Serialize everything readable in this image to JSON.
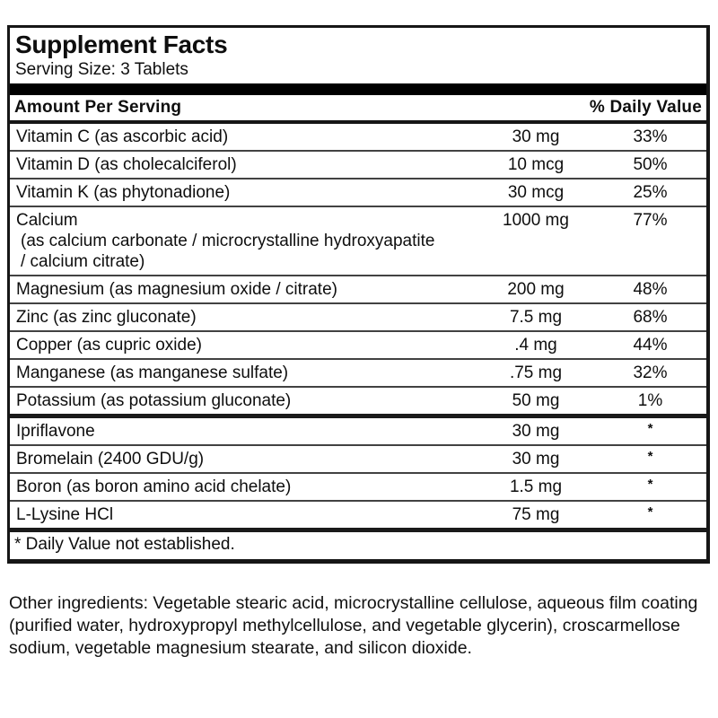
{
  "label": {
    "title": "Supplement Facts",
    "serving_size": "Serving Size: 3 Tablets",
    "columns": {
      "amount_header": "Amount Per Serving",
      "dv_header": "% Daily Value"
    },
    "rows": [
      {
        "name": "Vitamin C (as ascorbic acid)",
        "amount": "30 mg",
        "dv": "33%"
      },
      {
        "name": "Vitamin D (as cholecalciferol)",
        "amount": "10 mcg",
        "dv": "50%"
      },
      {
        "name": "Vitamin K (as phytonadione)",
        "amount": "30 mcg",
        "dv": "25%"
      },
      {
        "name": "Calcium",
        "sub": [
          "(as calcium carbonate / microcrystalline hydroxyapatite",
          "/ calcium citrate)"
        ],
        "amount": "1000 mg",
        "dv": "77%"
      },
      {
        "name": "Magnesium (as magnesium oxide / citrate)",
        "amount": "200 mg",
        "dv": "48%"
      },
      {
        "name": "Zinc (as zinc gluconate)",
        "amount": "7.5 mg",
        "dv": "68%"
      },
      {
        "name": "Copper (as cupric oxide)",
        "amount": ".4 mg",
        "dv": "44%"
      },
      {
        "name": "Manganese (as manganese sulfate)",
        "amount": ".75 mg",
        "dv": "32%"
      },
      {
        "name": "Potassium (as potassium gluconate)",
        "amount": "50 mg",
        "dv": "1%"
      },
      {
        "name": "Ipriflavone",
        "amount": "30 mg",
        "dv": "*"
      },
      {
        "name": "Bromelain (2400 GDU/g)",
        "amount": "30 mg",
        "dv": "*"
      },
      {
        "name": "Boron (as boron amino acid chelate)",
        "amount": "1.5 mg",
        "dv": "*"
      },
      {
        "name": "L-Lysine HCl",
        "amount": "75 mg",
        "dv": "*"
      }
    ],
    "footnote": "* Daily Value not established."
  },
  "other_ingredients": "Other ingredients: Vegetable stearic acid, microcrystalline cellulose, aqueous film coating (purified water, hydroxypropyl methylcellulose, and vegetable glycerin), croscarmellose sodium, vegetable magnesium stearate, and silicon dioxide.",
  "colors": {
    "text": "#0e0e0e",
    "border": "#161616",
    "divider": "#424242",
    "background": "#ffffff"
  }
}
